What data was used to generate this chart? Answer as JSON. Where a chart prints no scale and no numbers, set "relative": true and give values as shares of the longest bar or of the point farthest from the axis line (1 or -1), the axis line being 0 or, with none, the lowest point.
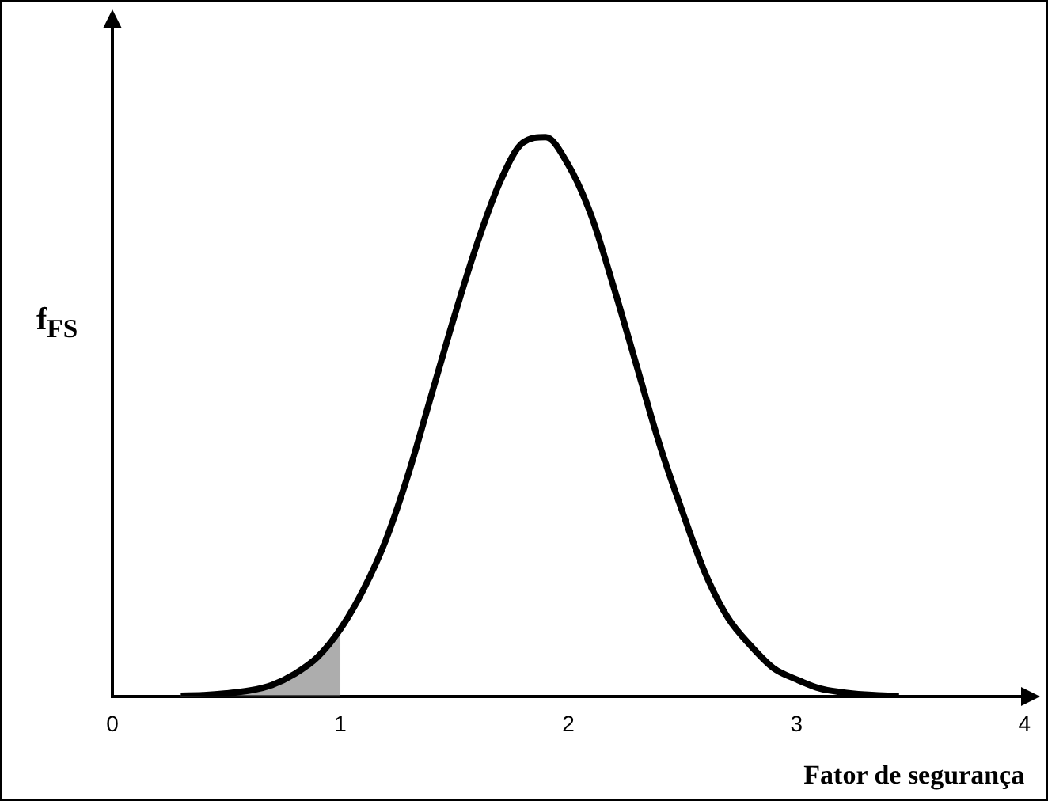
{
  "chart_data": {
    "type": "line",
    "relative": true,
    "xlabel": "Fator de segurança",
    "ylabel": "f$_{FS}$",
    "xlim": [
      0,
      4
    ],
    "xticks": [
      0,
      1,
      2,
      3,
      4
    ],
    "grid": false,
    "legend": false,
    "marker": "none",
    "line_style": "solid",
    "x": [
      0.3,
      0.4,
      0.5,
      0.6,
      0.7,
      0.8,
      0.9,
      1.0,
      1.1,
      1.2,
      1.3,
      1.4,
      1.5,
      1.6,
      1.7,
      1.8,
      1.9,
      2.0,
      2.1,
      2.2,
      2.3,
      2.4,
      2.5,
      2.6,
      2.7,
      2.8,
      2.9,
      3.0,
      3.1,
      3.2,
      3.3,
      3.4,
      3.45
    ],
    "series": [
      {
        "color": "#000000",
        "values": [
          0.001,
          0.002,
          0.005,
          0.01,
          0.02,
          0.04,
          0.07,
          0.12,
          0.19,
          0.28,
          0.4,
          0.54,
          0.68,
          0.81,
          0.92,
          0.99,
          1,
          0.95,
          0.86,
          0.73,
          0.59,
          0.45,
          0.33,
          0.22,
          0.14,
          0.09,
          0.05,
          0.03,
          0.014,
          0.007,
          0.003,
          0.001,
          0.001
        ]
      },
      {
        "type": "area",
        "color": "#777777",
        "x": [
          0.3,
          0.4,
          0.5,
          0.6,
          0.7,
          0.8,
          0.9,
          1.0
        ],
        "values": [
          0.001,
          0.002,
          0.005,
          0.01,
          0.02,
          0.04,
          0.07,
          0.12
        ]
      }
    ]
  }
}
